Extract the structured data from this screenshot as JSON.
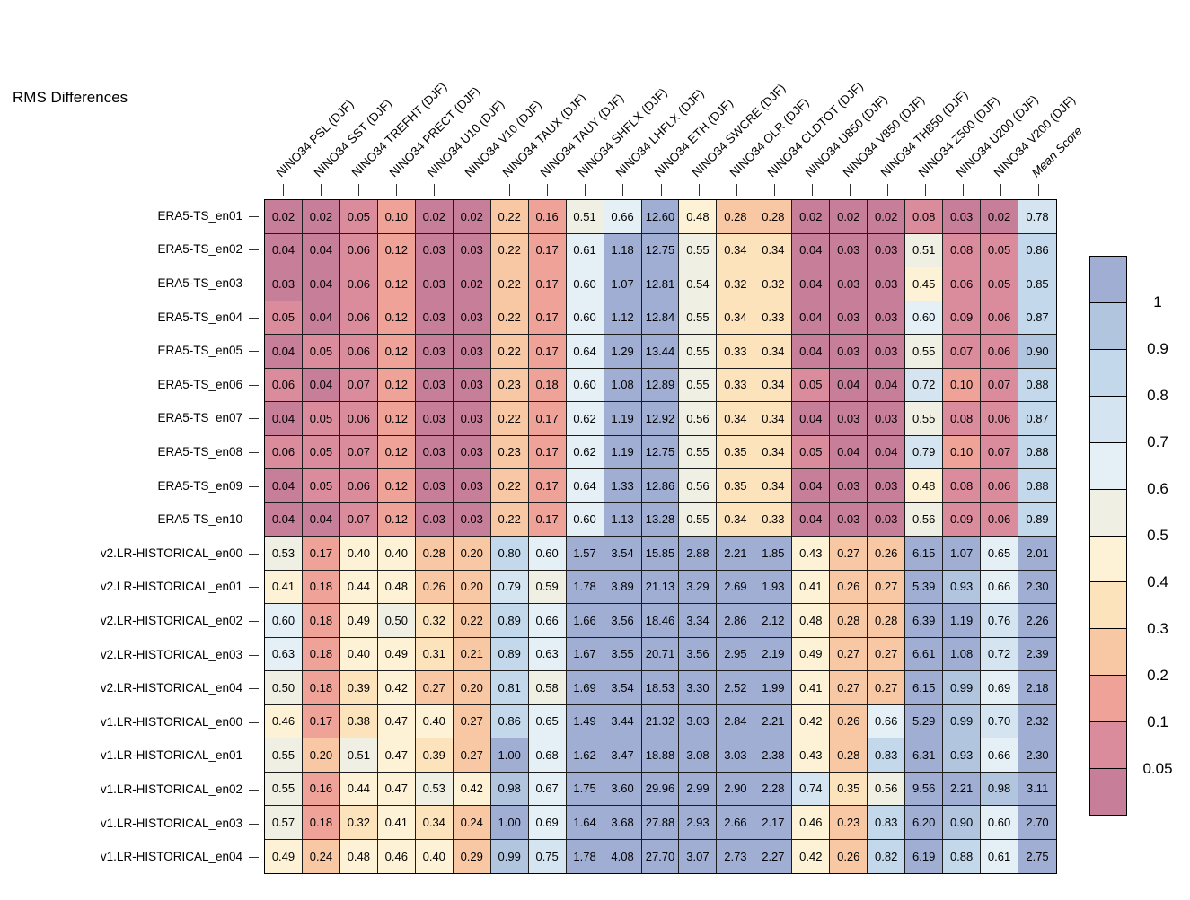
{
  "chart_data": {
    "type": "heatmap",
    "title": "RMS Differences",
    "columns": [
      "NINO34 PSL (DJF)",
      "NINO34 SST (DJF)",
      "NINO34 TREFHT (DJF)",
      "NINO34 PRECT (DJF)",
      "NINO34 U10 (DJF)",
      "NINO34 V10 (DJF)",
      "NINO34 TAUX (DJF)",
      "NINO34 TAUY (DJF)",
      "NINO34 SHFLX (DJF)",
      "NINO34 LHFLX (DJF)",
      "NINO34 ETH (DJF)",
      "NINO34 SWCRE (DJF)",
      "NINO34 OLR (DJF)",
      "NINO34 CLDTOT (DJF)",
      "NINO34 U850 (DJF)",
      "NINO34 V850 (DJF)",
      "NINO34 TH850 (DJF)",
      "NINO34 Z500 (DJF)",
      "NINO34 U200 (DJF)",
      "NINO34 V200 (DJF)",
      "Mean Score"
    ],
    "rows": [
      "ERA5-TS_en01",
      "ERA5-TS_en02",
      "ERA5-TS_en03",
      "ERA5-TS_en04",
      "ERA5-TS_en05",
      "ERA5-TS_en06",
      "ERA5-TS_en07",
      "ERA5-TS_en08",
      "ERA5-TS_en09",
      "ERA5-TS_en10",
      "v2.LR-HISTORICAL_en00",
      "v2.LR-HISTORICAL_en01",
      "v2.LR-HISTORICAL_en02",
      "v2.LR-HISTORICAL_en03",
      "v2.LR-HISTORICAL_en04",
      "v1.LR-HISTORICAL_en00",
      "v1.LR-HISTORICAL_en01",
      "v1.LR-HISTORICAL_en02",
      "v1.LR-HISTORICAL_en03",
      "v1.LR-HISTORICAL_en04"
    ],
    "values": [
      [
        0.02,
        0.02,
        0.05,
        0.1,
        0.02,
        0.02,
        0.22,
        0.16,
        0.51,
        0.66,
        12.6,
        0.48,
        0.28,
        0.28,
        0.02,
        0.02,
        0.02,
        0.08,
        0.03,
        0.02,
        0.78
      ],
      [
        0.04,
        0.04,
        0.06,
        0.12,
        0.03,
        0.03,
        0.22,
        0.17,
        0.61,
        1.18,
        12.75,
        0.55,
        0.34,
        0.34,
        0.04,
        0.03,
        0.03,
        0.51,
        0.08,
        0.05,
        0.86
      ],
      [
        0.03,
        0.04,
        0.06,
        0.12,
        0.03,
        0.02,
        0.22,
        0.17,
        0.6,
        1.07,
        12.81,
        0.54,
        0.32,
        0.32,
        0.04,
        0.03,
        0.03,
        0.45,
        0.06,
        0.05,
        0.85
      ],
      [
        0.05,
        0.04,
        0.06,
        0.12,
        0.03,
        0.03,
        0.22,
        0.17,
        0.6,
        1.12,
        12.84,
        0.55,
        0.34,
        0.33,
        0.04,
        0.03,
        0.03,
        0.6,
        0.09,
        0.06,
        0.87
      ],
      [
        0.04,
        0.05,
        0.06,
        0.12,
        0.03,
        0.03,
        0.22,
        0.17,
        0.64,
        1.29,
        13.44,
        0.55,
        0.33,
        0.34,
        0.04,
        0.03,
        0.03,
        0.55,
        0.07,
        0.06,
        0.9
      ],
      [
        0.06,
        0.04,
        0.07,
        0.12,
        0.03,
        0.03,
        0.23,
        0.18,
        0.6,
        1.08,
        12.89,
        0.55,
        0.33,
        0.34,
        0.05,
        0.04,
        0.04,
        0.72,
        0.1,
        0.07,
        0.88
      ],
      [
        0.04,
        0.05,
        0.06,
        0.12,
        0.03,
        0.03,
        0.22,
        0.17,
        0.62,
        1.19,
        12.92,
        0.56,
        0.34,
        0.34,
        0.04,
        0.03,
        0.03,
        0.55,
        0.08,
        0.06,
        0.87
      ],
      [
        0.06,
        0.05,
        0.07,
        0.12,
        0.03,
        0.03,
        0.23,
        0.17,
        0.62,
        1.19,
        12.75,
        0.55,
        0.35,
        0.34,
        0.05,
        0.04,
        0.04,
        0.79,
        0.1,
        0.07,
        0.88
      ],
      [
        0.04,
        0.05,
        0.06,
        0.12,
        0.03,
        0.03,
        0.22,
        0.17,
        0.64,
        1.33,
        12.86,
        0.56,
        0.35,
        0.34,
        0.04,
        0.03,
        0.03,
        0.48,
        0.08,
        0.06,
        0.88
      ],
      [
        0.04,
        0.04,
        0.07,
        0.12,
        0.03,
        0.03,
        0.22,
        0.17,
        0.6,
        1.13,
        13.28,
        0.55,
        0.34,
        0.33,
        0.04,
        0.03,
        0.03,
        0.56,
        0.09,
        0.06,
        0.89
      ],
      [
        0.53,
        0.17,
        0.4,
        0.4,
        0.28,
        0.2,
        0.8,
        0.6,
        1.57,
        3.54,
        15.85,
        2.88,
        2.21,
        1.85,
        0.43,
        0.27,
        0.26,
        6.15,
        1.07,
        0.65,
        2.01
      ],
      [
        0.41,
        0.18,
        0.44,
        0.48,
        0.26,
        0.2,
        0.79,
        0.59,
        1.78,
        3.89,
        21.13,
        3.29,
        2.69,
        1.93,
        0.41,
        0.26,
        0.27,
        5.39,
        0.93,
        0.66,
        2.3
      ],
      [
        0.6,
        0.18,
        0.49,
        0.5,
        0.32,
        0.22,
        0.89,
        0.66,
        1.66,
        3.56,
        18.46,
        3.34,
        2.86,
        2.12,
        0.48,
        0.28,
        0.28,
        6.39,
        1.19,
        0.76,
        2.26
      ],
      [
        0.63,
        0.18,
        0.4,
        0.49,
        0.31,
        0.21,
        0.89,
        0.63,
        1.67,
        3.55,
        20.71,
        3.56,
        2.95,
        2.19,
        0.49,
        0.27,
        0.27,
        6.61,
        1.08,
        0.72,
        2.39
      ],
      [
        0.5,
        0.18,
        0.39,
        0.42,
        0.27,
        0.2,
        0.81,
        0.58,
        1.69,
        3.54,
        18.53,
        3.3,
        2.52,
        1.99,
        0.41,
        0.27,
        0.27,
        6.15,
        0.99,
        0.69,
        2.18
      ],
      [
        0.46,
        0.17,
        0.38,
        0.47,
        0.4,
        0.27,
        0.86,
        0.65,
        1.49,
        3.44,
        21.32,
        3.03,
        2.84,
        2.21,
        0.42,
        0.26,
        0.66,
        5.29,
        0.99,
        0.7,
        2.32
      ],
      [
        0.55,
        0.2,
        0.51,
        0.47,
        0.39,
        0.27,
        1.0,
        0.68,
        1.62,
        3.47,
        18.88,
        3.08,
        3.03,
        2.38,
        0.43,
        0.28,
        0.83,
        6.31,
        0.93,
        0.66,
        2.3
      ],
      [
        0.55,
        0.16,
        0.44,
        0.47,
        0.53,
        0.42,
        0.98,
        0.67,
        1.75,
        3.6,
        29.96,
        2.99,
        2.9,
        2.28,
        0.74,
        0.35,
        0.56,
        9.56,
        2.21,
        0.98,
        3.11
      ],
      [
        0.57,
        0.18,
        0.32,
        0.41,
        0.34,
        0.24,
        1.0,
        0.69,
        1.64,
        3.68,
        27.88,
        2.93,
        2.66,
        2.17,
        0.46,
        0.23,
        0.83,
        6.2,
        0.9,
        0.6,
        2.7
      ],
      [
        0.49,
        0.24,
        0.48,
        0.46,
        0.4,
        0.29,
        0.99,
        0.75,
        1.78,
        4.08,
        27.7,
        3.07,
        2.73,
        2.27,
        0.42,
        0.26,
        0.82,
        6.19,
        0.88,
        0.61,
        2.75
      ]
    ],
    "value_format": "2dp",
    "colorbar": {
      "position": "right",
      "tick_labels": [
        "1",
        "0.9",
        "0.8",
        "0.7",
        "0.6",
        "0.5",
        "0.4",
        "0.3",
        "0.2",
        "0.1",
        "0.05"
      ],
      "bin_edges": [
        0.05,
        0.1,
        0.2,
        0.3,
        0.4,
        0.5,
        0.6,
        0.7,
        0.8,
        0.9,
        1
      ],
      "bin_colors_low_to_high": [
        "#c67e99",
        "#da8c9d",
        "#eea298",
        "#f8c8a4",
        "#fce3bc",
        "#fdf2d5",
        "#f0efe3",
        "#e5eff6",
        "#d4e5f1",
        "#c3d8ea",
        "#b1c5df",
        "#a0aed3"
      ]
    },
    "cell_text_color": "#000000",
    "grid_line_color": "#1c1c1c"
  }
}
